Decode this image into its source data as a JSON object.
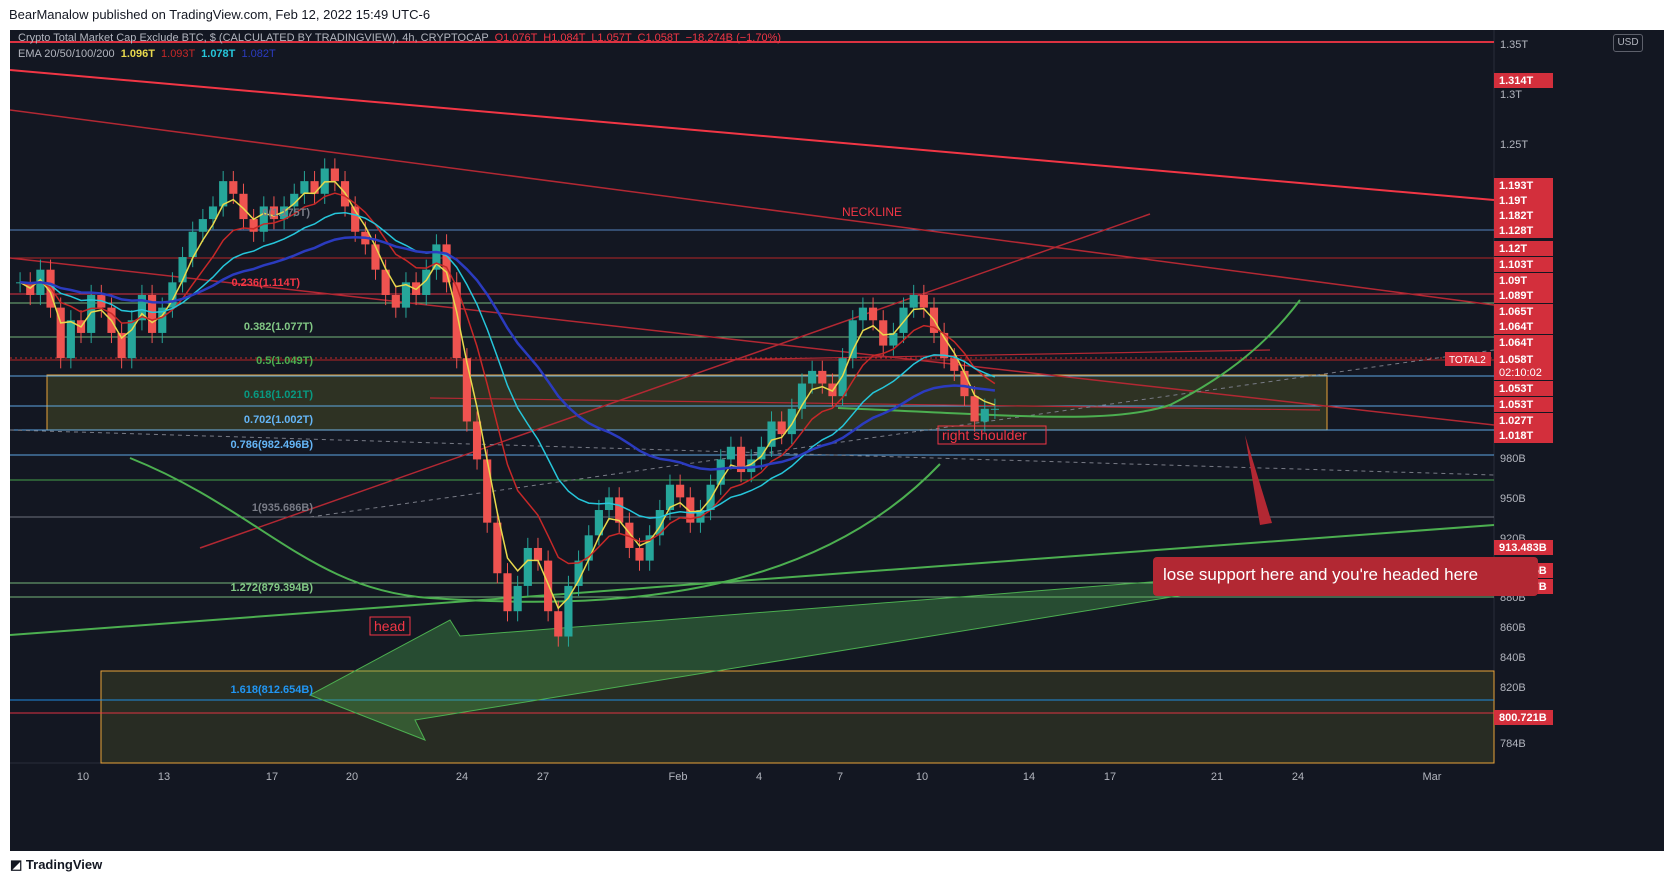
{
  "header": {
    "publisher_line": "BearManalow published on TradingView.com, Feb 12, 2022 15:49 UTC-6"
  },
  "legend": {
    "symbol_line": "Crypto Total Market Cap Exclude BTC, $ (CALCULATED BY TRADINGVIEW), 4h, CRYPTOCAP",
    "ohlc": [
      "O1.076T",
      "H1.084T",
      "L1.057T",
      "C1.058T",
      "−18.274B (−1.70%)"
    ],
    "ema_label": "EMA 20/50/100/200",
    "ema_values": [
      "1.096T",
      "1.093T",
      "1.078T",
      "1.082T"
    ],
    "ema_colors": [
      "#e8d94d",
      "#c62828",
      "#26c6da",
      "#2b3bbf"
    ]
  },
  "currency_button": "USD",
  "footer": {
    "brand": "TradingView"
  },
  "chart_data": {
    "type": "line",
    "title": "Crypto Total Market Cap Exclude BTC, $ (CALCULATED BY TRADINGVIEW), 4h, CRYPTOCAP",
    "x_ticks": [
      "10",
      "13",
      "17",
      "20",
      "24",
      "27",
      "Feb",
      "4",
      "7",
      "10",
      "14",
      "17",
      "21",
      "24",
      "Mar"
    ],
    "y_ticks": [
      "1.35T",
      "1.3T",
      "1.25T",
      "980B",
      "950B",
      "920B",
      "880B",
      "860B",
      "840B",
      "820B",
      "784B"
    ],
    "price_labels": [
      "1.314T",
      "1.193T",
      "1.19T",
      "1.182T",
      "1.128T",
      "1.12T",
      "1.103T",
      "1.09T",
      "1.089T",
      "1.065T",
      "1.064T",
      "1.064T",
      "1.058T",
      "1.053T",
      "1.053T",
      "1.027T",
      "1.018T",
      "913.483B",
      "897.905B",
      "893.957B",
      "800.721B"
    ],
    "current_price": "1.058T",
    "current_symbol": "TOTAL2",
    "countdown": "02:10:02",
    "fib_levels": [
      {
        "label": "0(1.175T)",
        "color": "#787b86"
      },
      {
        "label": "0.236(1.114T)",
        "color": "#f23645"
      },
      {
        "label": "0.382(1.077T)",
        "color": "#81c784"
      },
      {
        "label": "0.5(1.049T)",
        "color": "#4caf50"
      },
      {
        "label": "0.618(1.021T)",
        "color": "#089981"
      },
      {
        "label": "0.702(1.002T)",
        "color": "#64b5f6"
      },
      {
        "label": "0.786(982.496B)",
        "color": "#64b5f6"
      },
      {
        "label": "1(935.686B)",
        "color": "#787b86"
      },
      {
        "label": "1.272(879.394B)",
        "color": "#81c784"
      },
      {
        "label": "1.618(812.654B)",
        "color": "#2196f3"
      }
    ],
    "annotations": {
      "neckline": "NECKLINE",
      "right_shoulder": "right shoulder",
      "head": "head",
      "callout": "lose support here and you're headed here"
    },
    "candle_closes": [
      1.16,
      1.15,
      1.17,
      1.14,
      1.1,
      1.13,
      1.12,
      1.15,
      1.14,
      1.12,
      1.1,
      1.13,
      1.15,
      1.12,
      1.14,
      1.16,
      1.18,
      1.2,
      1.21,
      1.22,
      1.24,
      1.23,
      1.21,
      1.2,
      1.22,
      1.21,
      1.22,
      1.23,
      1.24,
      1.23,
      1.25,
      1.24,
      1.22,
      1.2,
      1.19,
      1.17,
      1.15,
      1.14,
      1.16,
      1.15,
      1.17,
      1.19,
      1.16,
      1.1,
      1.05,
      1.02,
      0.97,
      0.93,
      0.9,
      0.92,
      0.95,
      0.94,
      0.9,
      0.88,
      0.92,
      0.94,
      0.96,
      0.98,
      0.99,
      0.97,
      0.95,
      0.94,
      0.96,
      0.98,
      1.0,
      0.99,
      0.97,
      0.98,
      1.0,
      1.02,
      1.03,
      1.01,
      1.02,
      1.03,
      1.05,
      1.04,
      1.06,
      1.08,
      1.09,
      1.08,
      1.07,
      1.1,
      1.13,
      1.14,
      1.13,
      1.11,
      1.12,
      1.14,
      1.15,
      1.14,
      1.12,
      1.1,
      1.09,
      1.07,
      1.05,
      1.06,
      1.06
    ]
  }
}
